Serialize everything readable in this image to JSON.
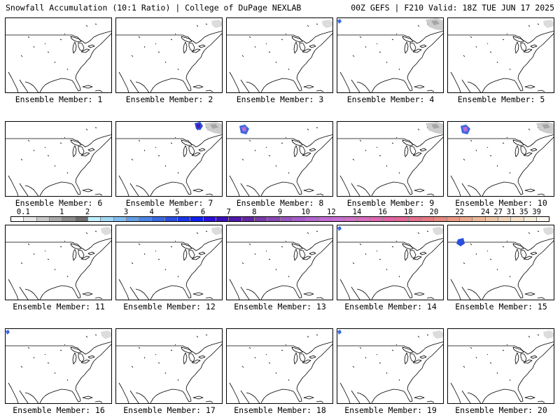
{
  "header": {
    "title_left": "Snowfall Accumulation (10:1 Ratio) | College of DuPage NEXLAB",
    "title_right": "00Z GEFS | F210 Valid: 18Z TUE JUN 17 2025"
  },
  "panels": [
    {
      "label": "Ensemble Member: 1",
      "snow": []
    },
    {
      "label": "Ensemble Member: 2",
      "snow": [
        "ne-light"
      ]
    },
    {
      "label": "Ensemble Member: 3",
      "snow": [
        "ne-light"
      ]
    },
    {
      "label": "Ensemble Member: 4",
      "snow": [
        "nw-spot",
        "ne-heavy"
      ]
    },
    {
      "label": "Ensemble Member: 5",
      "snow": [
        "ne-light"
      ]
    },
    {
      "label": "Ensemble Member: 6",
      "snow": []
    },
    {
      "label": "Ensemble Member: 7",
      "snow": [
        "ne-heavy",
        "ne-blue"
      ]
    },
    {
      "label": "Ensemble Member: 8",
      "snow": [
        "nw-storm"
      ]
    },
    {
      "label": "Ensemble Member: 9",
      "snow": [
        "ne-heavy"
      ]
    },
    {
      "label": "Ensemble Member: 10",
      "snow": [
        "nw-storm",
        "ne-heavy"
      ]
    },
    {
      "label": "Ensemble Member: 11",
      "snow": [
        "ne-light"
      ]
    },
    {
      "label": "Ensemble Member: 12",
      "snow": [
        "ne-light"
      ]
    },
    {
      "label": "Ensemble Member: 13",
      "snow": []
    },
    {
      "label": "Ensemble Member: 14",
      "snow": [
        "nw-spot",
        "ne-light"
      ]
    },
    {
      "label": "Ensemble Member: 15",
      "snow": [
        "mid-blue",
        "ne-light"
      ]
    },
    {
      "label": "Ensemble Member: 16",
      "snow": [
        "nw-spot",
        "ne-light"
      ]
    },
    {
      "label": "Ensemble Member: 17",
      "snow": []
    },
    {
      "label": "Ensemble Member: 18",
      "snow": []
    },
    {
      "label": "Ensemble Member: 19",
      "snow": [
        "nw-spot",
        "ne-light"
      ]
    },
    {
      "label": "Ensemble Member: 20",
      "snow": [
        "ne-light"
      ]
    }
  ],
  "legend": {
    "labels": [
      "0.1",
      "1",
      "2",
      "3",
      "4",
      "5",
      "6",
      "7",
      "8",
      "9",
      "10",
      "12",
      "14",
      "16",
      "18",
      "20",
      "22",
      "24",
      "27",
      "31",
      "35",
      "39"
    ],
    "colors": [
      "#ffffff",
      "#e6e6e6",
      "#c8c8c8",
      "#aaaaaa",
      "#8c8c8c",
      "#6e6e6e",
      "#bfefff",
      "#a0d8f5",
      "#82bef0",
      "#639fe8",
      "#4a84e4",
      "#3a68e0",
      "#2a4ee0",
      "#1c36e8",
      "#1020f0",
      "#2a10d8",
      "#3c10b8",
      "#5018a8",
      "#6428a0",
      "#7a3aa8",
      "#8a48b4",
      "#9a54c0",
      "#a85ec8",
      "#b466d0",
      "#c06cd4",
      "#c870d0",
      "#d070c8",
      "#d86cbc",
      "#de68b0",
      "#e064a4",
      "#e26898",
      "#e4708c",
      "#e47a84",
      "#e68880",
      "#e89884",
      "#eaa88c",
      "#ecb698",
      "#eec4a6",
      "#f0d2b6",
      "#f4dfc8",
      "#f8ecdc",
      "#fcf6ee"
    ]
  }
}
